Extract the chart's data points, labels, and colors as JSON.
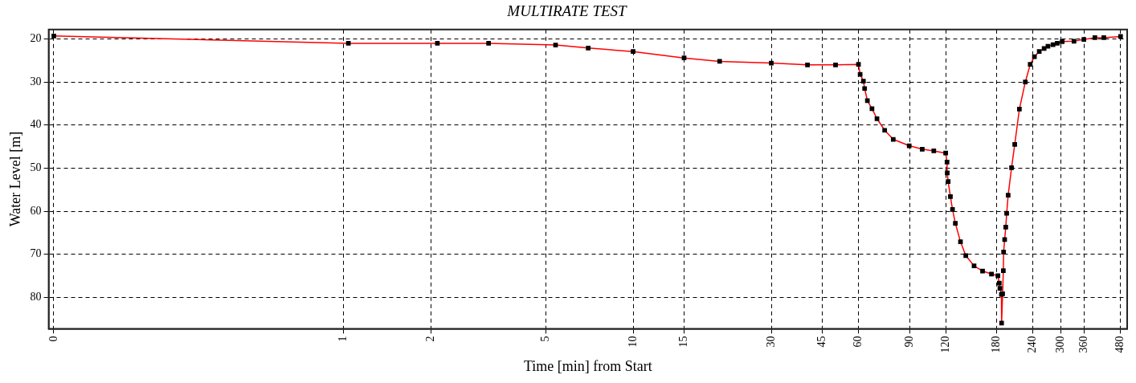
{
  "chart_data": {
    "type": "line",
    "title": "MULTIRATE TEST",
    "xlabel": "Time [min] from Start",
    "ylabel": "Water Level [m]",
    "log": "x",
    "xlim": [
      0.096,
      508
    ],
    "ylim": [
      87.3,
      17.8
    ],
    "xticks": [
      {
        "value": 0.1,
        "label": "0"
      },
      1,
      2,
      5,
      10,
      15,
      30,
      45,
      60,
      90,
      120,
      180,
      240,
      300,
      360,
      480
    ],
    "yticks": [
      20,
      30,
      40,
      50,
      60,
      70,
      80
    ],
    "grid": true,
    "legend": false,
    "marker": "square",
    "line_style": "solid",
    "series": [
      {
        "color": "#ff0000",
        "x": [
          0.1,
          1.04,
          2.11,
          3.17,
          5.4,
          7,
          10,
          15,
          19.9,
          30,
          40,
          50,
          60,
          60.8,
          62.4,
          63,
          64.4,
          66.8,
          69.5,
          73.9,
          79.1,
          89.8,
          99.6,
          109.2,
          120,
          121.3,
          121.5,
          122.4,
          124.6,
          126.7,
          129.6,
          135,
          140.8,
          150.4,
          160.9,
          172.7,
          181.8,
          183.8,
          184.7,
          186.9,
          187.2,
          188.7,
          189.8,
          190.2,
          191.8,
          193.5,
          194.9,
          197.2,
          202.6,
          207.8,
          215.6,
          226,
          235,
          243,
          252.5,
          262.5,
          270.6,
          281.7,
          291.4,
          303,
          332.8,
          360,
          393,
          422,
          482
        ],
        "values": [
          19.3,
          21,
          21,
          21,
          21.4,
          22.1,
          22.9,
          24.4,
          25.2,
          25.6,
          26,
          26,
          25.9,
          28.2,
          29.8,
          31.5,
          34.3,
          36.2,
          38.5,
          41.2,
          43.3,
          44.8,
          45.6,
          46,
          46.5,
          48.6,
          51.1,
          53.1,
          56.6,
          59.6,
          62.8,
          67.1,
          70.3,
          72.7,
          73.9,
          74.6,
          75,
          76.7,
          77.9,
          79.3,
          86,
          79.2,
          73.8,
          69.5,
          66.6,
          63.7,
          60.5,
          56.3,
          49.9,
          44.5,
          36.3,
          30,
          25.9,
          24.1,
          22.9,
          22.2,
          21.7,
          21.3,
          21,
          20.6,
          20.5,
          20.1,
          19.7,
          19.7,
          19.4
        ]
      }
    ]
  }
}
